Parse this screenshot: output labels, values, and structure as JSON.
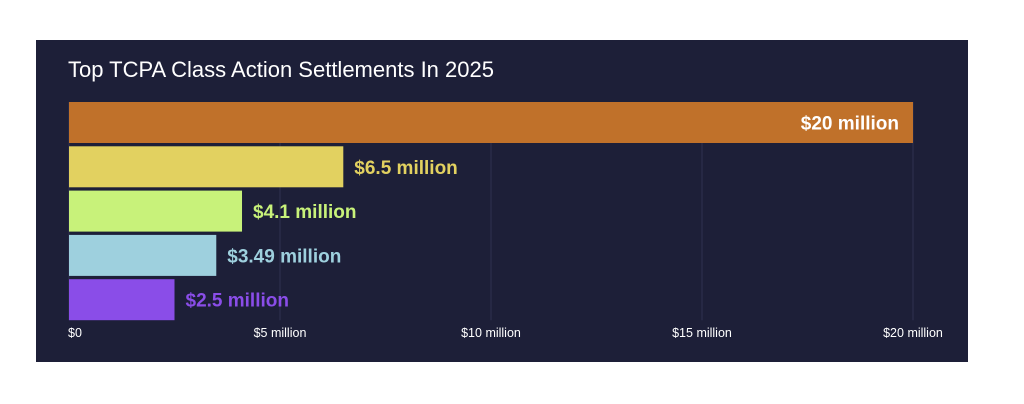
{
  "chart_data": {
    "type": "bar",
    "orientation": "horizontal",
    "title": "Top TCPA Class Action Settlements In 2025",
    "xlabel": "",
    "ylabel": "",
    "xlim": [
      0,
      20
    ],
    "xticks": [
      {
        "value": 0,
        "label": "$0"
      },
      {
        "value": 5,
        "label": "$5 million"
      },
      {
        "value": 10,
        "label": "$10 million"
      },
      {
        "value": 15,
        "label": "$15 million"
      },
      {
        "value": 20,
        "label": "$20 million"
      }
    ],
    "grid": true,
    "legend": "none",
    "bars": [
      {
        "value": 20,
        "label": "$20 million",
        "color": "#c0712a",
        "label_color": "#ffffff",
        "label_position": "inside-end"
      },
      {
        "value": 6.5,
        "label": "$6.5 million",
        "color": "#e2d160",
        "label_color": "#e2d160",
        "label_position": "outside"
      },
      {
        "value": 4.1,
        "label": "$4.1 million",
        "color": "#c8f27a",
        "label_color": "#c8f27a",
        "label_position": "outside"
      },
      {
        "value": 3.49,
        "label": "$3.49 million",
        "color": "#9ed0de",
        "label_color": "#9ed0de",
        "label_position": "outside"
      },
      {
        "value": 2.5,
        "label": "$2.5 million",
        "color": "#8a4de8",
        "label_color": "#8a4de8",
        "label_position": "outside"
      }
    ]
  },
  "colors": {
    "background": "#1d1f38",
    "title": "#ffffff",
    "tick_label": "#ffffff",
    "gridline": "#2e3150"
  }
}
